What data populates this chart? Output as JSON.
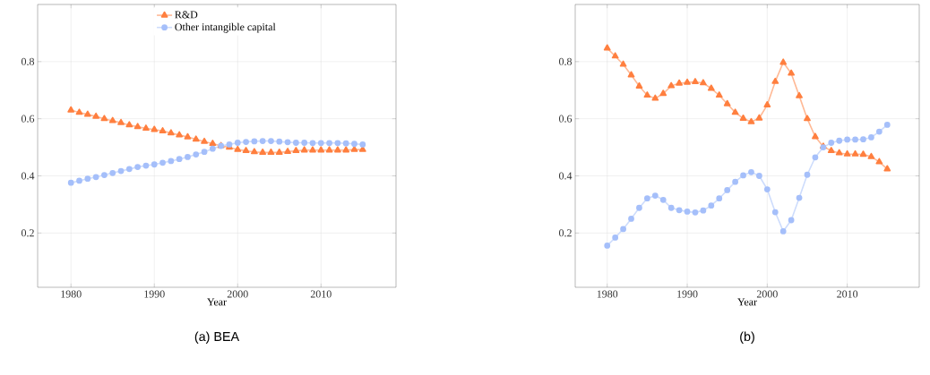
{
  "chart_data": [
    {
      "type": "line",
      "title": "(a) BEA",
      "xlabel": "Year",
      "x": [
        1980,
        1981,
        1982,
        1983,
        1984,
        1985,
        1986,
        1987,
        1988,
        1989,
        1990,
        1991,
        1992,
        1993,
        1994,
        1995,
        1996,
        1997,
        1998,
        1999,
        2000,
        2001,
        2002,
        2003,
        2004,
        2005,
        2006,
        2007,
        2008,
        2009,
        2010,
        2011,
        2012,
        2013,
        2014,
        2015
      ],
      "series": [
        {
          "name": "R&D",
          "color": "#ff7f3f",
          "marker": "triangle",
          "values": [
            0.63,
            0.622,
            0.615,
            0.608,
            0.6,
            0.593,
            0.586,
            0.578,
            0.572,
            0.566,
            0.562,
            0.557,
            0.55,
            0.543,
            0.536,
            0.528,
            0.52,
            0.513,
            0.505,
            0.5,
            0.492,
            0.488,
            0.484,
            0.482,
            0.482,
            0.482,
            0.485,
            0.488,
            0.49,
            0.49,
            0.49,
            0.49,
            0.49,
            0.49,
            0.492,
            0.492
          ]
        },
        {
          "name": "Other intangible capital",
          "color": "#a5bffa",
          "marker": "circle",
          "values": [
            0.376,
            0.383,
            0.39,
            0.396,
            0.403,
            0.41,
            0.417,
            0.424,
            0.431,
            0.436,
            0.44,
            0.446,
            0.452,
            0.459,
            0.466,
            0.475,
            0.484,
            0.495,
            0.505,
            0.51,
            0.516,
            0.519,
            0.521,
            0.522,
            0.522,
            0.52,
            0.518,
            0.516,
            0.516,
            0.515,
            0.515,
            0.515,
            0.515,
            0.514,
            0.512,
            0.51
          ]
        }
      ],
      "xlim": [
        1976,
        2019
      ],
      "ylim": [
        0.01,
        1
      ],
      "xticks": [
        1980,
        1990,
        2000,
        2010
      ],
      "yticks": [
        0.2,
        0.4,
        0.6,
        0.8
      ],
      "grid": true,
      "legend": "top"
    },
    {
      "type": "line",
      "title": "(b)",
      "xlabel": "Year",
      "x": [
        1980,
        1981,
        1982,
        1983,
        1984,
        1985,
        1986,
        1987,
        1988,
        1989,
        1990,
        1991,
        1992,
        1993,
        1994,
        1995,
        1996,
        1997,
        1998,
        1999,
        2000,
        2001,
        2002,
        2003,
        2004,
        2005,
        2006,
        2007,
        2008,
        2009,
        2010,
        2011,
        2012,
        2013,
        2014,
        2015
      ],
      "series": [
        {
          "color": "#ff7f3f",
          "marker": "triangle",
          "values": [
            0.847,
            0.819,
            0.79,
            0.753,
            0.714,
            0.682,
            0.671,
            0.688,
            0.715,
            0.724,
            0.727,
            0.729,
            0.725,
            0.706,
            0.682,
            0.652,
            0.622,
            0.601,
            0.589,
            0.602,
            0.648,
            0.73,
            0.797,
            0.759,
            0.68,
            0.6,
            0.537,
            0.503,
            0.488,
            0.48,
            0.476,
            0.476,
            0.475,
            0.467,
            0.449,
            0.424
          ]
        },
        {
          "color": "#a5bffa",
          "marker": "circle",
          "values": [
            0.156,
            0.184,
            0.214,
            0.25,
            0.288,
            0.321,
            0.331,
            0.316,
            0.288,
            0.28,
            0.275,
            0.272,
            0.279,
            0.296,
            0.321,
            0.35,
            0.379,
            0.402,
            0.413,
            0.4,
            0.353,
            0.273,
            0.206,
            0.245,
            0.323,
            0.404,
            0.465,
            0.5,
            0.516,
            0.523,
            0.527,
            0.527,
            0.528,
            0.535,
            0.555,
            0.579
          ]
        }
      ],
      "xlim": [
        1976,
        2019
      ],
      "ylim": [
        0.01,
        1
      ],
      "xticks": [
        1980,
        1990,
        2000,
        2010
      ],
      "yticks": [
        0.2,
        0.4,
        0.6,
        0.8
      ],
      "grid": true
    }
  ]
}
